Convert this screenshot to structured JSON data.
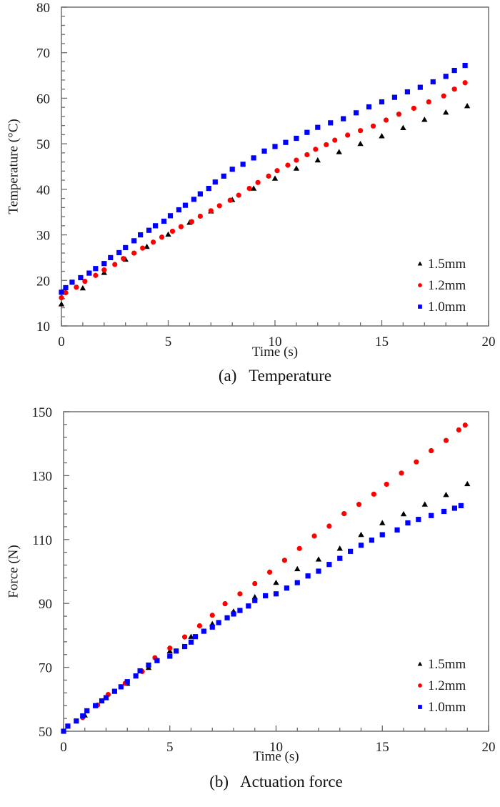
{
  "chart_data": [
    {
      "id": "temperature",
      "type": "scatter",
      "caption": "(a)   Temperature",
      "title": "",
      "xlabel": "Time (s)",
      "ylabel": "Temperature (°C)",
      "xlim": [
        0,
        20
      ],
      "ylim": [
        10,
        80
      ],
      "xticks": [
        0,
        5,
        10,
        15,
        20
      ],
      "yticks": [
        10,
        20,
        30,
        40,
        50,
        60,
        70,
        80
      ],
      "x_minor_step": 1,
      "y_minor_step": 2,
      "grid": false,
      "legend_position": "bottom-right",
      "series": [
        {
          "name": "1.5mm",
          "marker": "triangle",
          "color": "#000000",
          "x": [
            0,
            1,
            2,
            3,
            4,
            5,
            6,
            7,
            8,
            9,
            10,
            11,
            12,
            13,
            14,
            15,
            16,
            17,
            18,
            19
          ],
          "y": [
            14.8,
            18.3,
            21.7,
            24.6,
            27.4,
            30.1,
            32.7,
            35.2,
            37.7,
            40.2,
            42.4,
            44.6,
            46.4,
            48.2,
            50.0,
            51.7,
            53.5,
            55.3,
            56.9,
            58.3
          ]
        },
        {
          "name": "1.2mm",
          "marker": "circle",
          "color": "#ff0000",
          "x": [
            0,
            0.2,
            0.7,
            1.1,
            1.6,
            2.0,
            2.5,
            2.9,
            3.4,
            3.8,
            4.3,
            4.7,
            5.2,
            5.6,
            6.1,
            6.5,
            7.0,
            7.4,
            7.9,
            8.3,
            8.8,
            9.2,
            9.7,
            10.1,
            10.6,
            11.0,
            11.5,
            11.9,
            12.4,
            12.8,
            13.4,
            14.0,
            14.6,
            15.2,
            15.8,
            16.5,
            17.2,
            17.9,
            18.4,
            18.9
          ],
          "y": [
            16.2,
            17.3,
            18.5,
            19.8,
            21.1,
            22.3,
            23.5,
            24.8,
            26.0,
            27.1,
            28.4,
            29.5,
            30.8,
            31.8,
            32.9,
            34.1,
            35.3,
            36.4,
            37.6,
            38.7,
            40.2,
            41.5,
            42.9,
            44.1,
            45.3,
            46.4,
            47.6,
            48.8,
            49.8,
            50.8,
            51.9,
            52.9,
            53.9,
            55.2,
            56.5,
            57.8,
            59.2,
            60.5,
            62.0,
            63.4
          ]
        },
        {
          "name": "1.0mm",
          "marker": "square",
          "color": "#0000ff",
          "x": [
            0,
            0.2,
            0.5,
            0.9,
            1.3,
            1.6,
            2.0,
            2.3,
            2.7,
            3.0,
            3.4,
            3.7,
            4.1,
            4.4,
            4.8,
            5.1,
            5.5,
            5.8,
            6.2,
            6.5,
            6.9,
            7.2,
            7.6,
            8.0,
            8.5,
            9.0,
            9.5,
            10.0,
            10.5,
            11.0,
            11.5,
            12.0,
            12.6,
            13.2,
            13.8,
            14.4,
            15.0,
            15.6,
            16.2,
            16.8,
            17.4,
            18.0,
            18.4,
            18.9
          ],
          "y": [
            17.4,
            18.4,
            19.6,
            20.6,
            21.6,
            22.6,
            23.7,
            25.0,
            26.1,
            27.2,
            28.7,
            30.0,
            31.0,
            32.0,
            33.0,
            34.2,
            35.5,
            36.5,
            37.8,
            39.0,
            40.2,
            41.6,
            42.9,
            44.4,
            45.5,
            46.9,
            48.4,
            49.4,
            50.3,
            51.2,
            52.5,
            53.6,
            54.6,
            55.5,
            56.8,
            58.1,
            59.2,
            60.2,
            61.4,
            62.4,
            63.6,
            64.8,
            66.1,
            67.2
          ]
        }
      ]
    },
    {
      "id": "force",
      "type": "scatter",
      "caption": "(b)   Actuation force",
      "title": "",
      "xlabel": "Time (s)",
      "ylabel": "Force (N)",
      "xlim": [
        0,
        20
      ],
      "ylim": [
        50,
        150
      ],
      "xticks": [
        0,
        5,
        10,
        15,
        20
      ],
      "yticks": [
        50,
        70,
        90,
        110,
        130,
        150
      ],
      "x_minor_step": 1,
      "y_minor_step": 4,
      "grid": false,
      "legend_position": "bottom-right",
      "series": [
        {
          "name": "1.5mm",
          "marker": "triangle",
          "color": "#000000",
          "x": [
            1,
            2,
            3,
            4,
            5,
            6,
            7,
            8,
            9,
            10,
            11,
            12,
            13,
            14,
            15,
            16,
            17,
            18,
            19
          ],
          "y": [
            55.0,
            60.5,
            64.9,
            69.9,
            75.1,
            79.6,
            83.6,
            87.5,
            92.0,
            96.5,
            100.8,
            103.8,
            107.2,
            111.5,
            115.2,
            118.0,
            121.0,
            124.0,
            127.4
          ]
        },
        {
          "name": "1.2mm",
          "marker": "circle",
          "color": "#ff0000",
          "x": [
            0.9,
            1.6,
            2.1,
            2.9,
            3.7,
            4.3,
            5.0,
            5.7,
            6.4,
            7.0,
            7.6,
            8.3,
            9.0,
            9.7,
            10.4,
            11.1,
            11.8,
            12.5,
            13.2,
            13.9,
            14.6,
            15.2,
            15.9,
            16.6,
            17.3,
            18.0,
            18.6,
            18.9
          ],
          "y": [
            54.3,
            58.2,
            61.5,
            65.0,
            68.7,
            73.0,
            76.0,
            79.5,
            83.0,
            86.3,
            89.9,
            93.0,
            96.2,
            99.8,
            103.5,
            107.2,
            111.1,
            114.2,
            118.1,
            121.0,
            124.2,
            127.3,
            130.8,
            134.3,
            137.8,
            141.0,
            144.3,
            145.8
          ]
        },
        {
          "name": "1.0mm",
          "marker": "square",
          "color": "#0000ff",
          "x": [
            0,
            0.2,
            0.6,
            0.9,
            1.1,
            1.5,
            1.8,
            2.0,
            2.4,
            2.7,
            3.0,
            3.4,
            3.6,
            4.0,
            4.4,
            5.0,
            5.3,
            5.7,
            6.0,
            6.2,
            6.6,
            7.0,
            7.3,
            7.7,
            8.0,
            8.3,
            8.7,
            9.0,
            9.5,
            10.0,
            10.5,
            11.0,
            11.5,
            12.0,
            12.5,
            13.0,
            13.5,
            14.0,
            14.5,
            15.0,
            15.7,
            16.2,
            16.7,
            17.3,
            17.9,
            18.4,
            18.7
          ],
          "y": [
            50.0,
            51.6,
            53.2,
            54.8,
            56.4,
            58.0,
            59.5,
            60.5,
            62.5,
            63.9,
            65.5,
            67.3,
            68.9,
            70.7,
            72.1,
            73.5,
            75.1,
            76.5,
            77.9,
            79.6,
            81.3,
            82.6,
            84.0,
            85.5,
            86.7,
            87.8,
            89.2,
            90.9,
            92.4,
            93.0,
            94.8,
            96.5,
            98.6,
            100.1,
            102.2,
            104.1,
            106.3,
            108.2,
            109.8,
            111.5,
            113.0,
            115.2,
            116.3,
            117.5,
            118.8,
            119.8,
            120.6
          ]
        }
      ]
    }
  ]
}
